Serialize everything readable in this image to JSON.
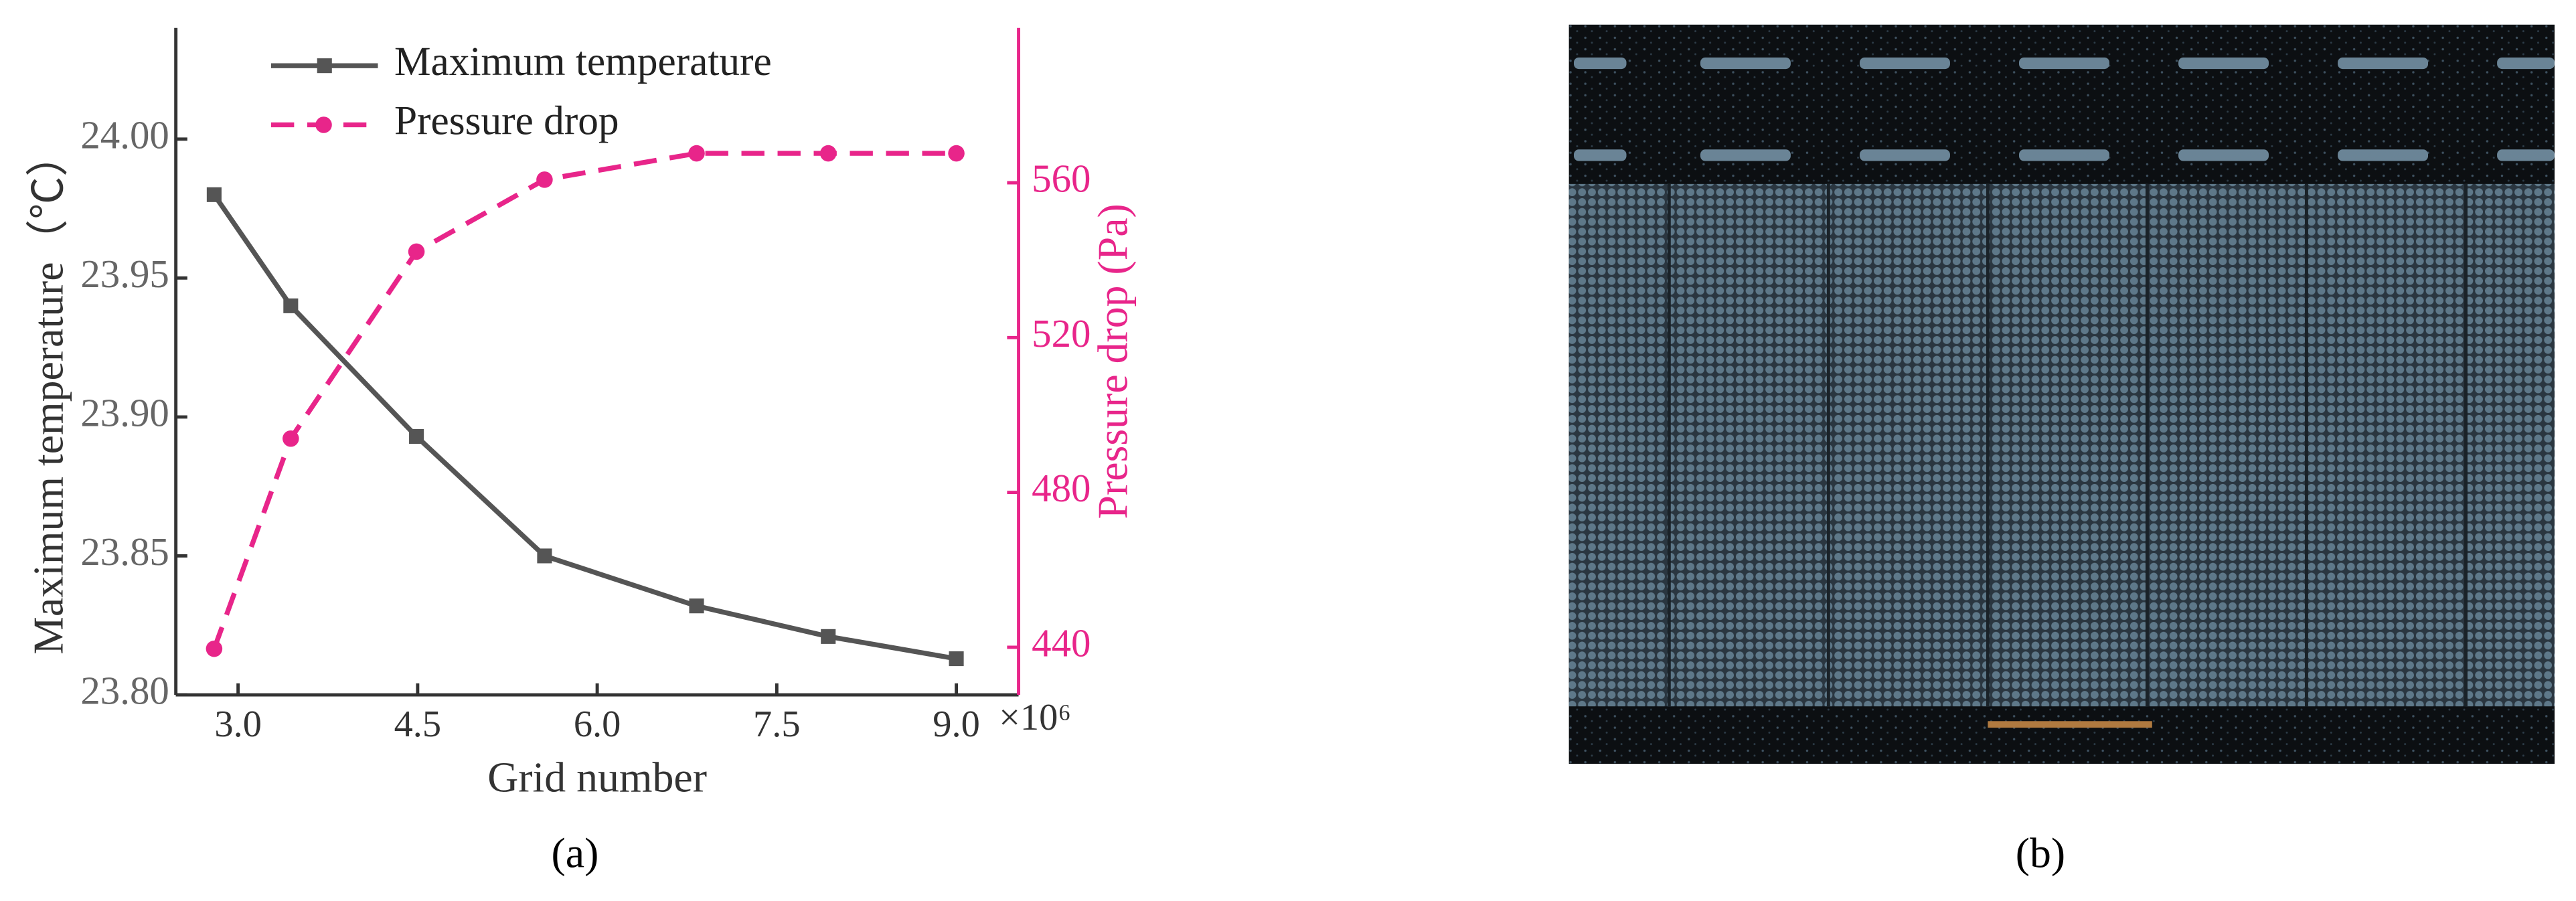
{
  "chart_data": {
    "type": "line",
    "x_label": "Grid number",
    "x_multiplier": "×10⁶",
    "y_label": "Maximum temperature（℃）",
    "y2_label": "Pressure drop (Pa)",
    "x": [
      2.8,
      3.44,
      4.49,
      5.56,
      6.83,
      7.93,
      9.0
    ],
    "xlim": [
      2.48,
      9.52
    ],
    "xticks": [
      {
        "value": 3,
        "label": "3.0"
      },
      4.5,
      {
        "value": 6,
        "label": "6.0"
      },
      7.5,
      {
        "value": 9,
        "label": "9.0"
      }
    ],
    "ylim": [
      23.8,
      24.04
    ],
    "yticks": [
      {
        "value": 23.8,
        "label": "23.80"
      },
      23.85,
      {
        "value": 23.9,
        "label": "23.90"
      },
      23.95,
      {
        "value": 24,
        "label": "24.00"
      }
    ],
    "y2lim": [
      427.7,
      600
    ],
    "y2ticks": [
      440,
      480,
      520,
      560
    ],
    "y_color": "#666666",
    "y2_color": "#e8258a",
    "legend": "upper left",
    "series": [
      {
        "name": "Maximum temperature",
        "color": "#555555",
        "marker": "square",
        "dashed": false,
        "values": [
          23.98,
          23.94,
          23.893,
          23.85,
          23.832,
          23.821,
          23.813
        ]
      },
      {
        "name": "Pressure drop",
        "color": "#e8258a",
        "marker": "circle",
        "dashed": true,
        "axis": "y2",
        "values": [
          439.6,
          493.9,
          542.2,
          560.8,
          567.6,
          567.6,
          567.6
        ]
      }
    ]
  },
  "panels": [
    "(a)",
    "(b)"
  ]
}
